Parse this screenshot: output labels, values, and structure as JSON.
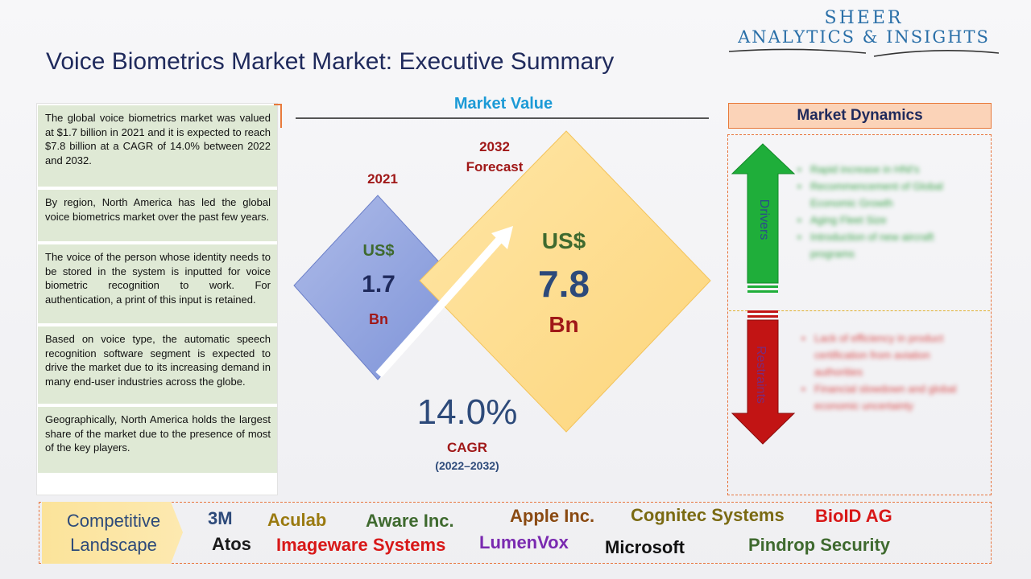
{
  "logo": {
    "line1": "SHEER",
    "line2": "ANALYTICS & INSIGHTS"
  },
  "title": "Voice Biometrics Market Market: Executive Summary",
  "summary": [
    "The global voice biometrics market was valued at $1.7 billion in 2021 and it is expected to reach $7.8 billion at a CAGR of 14.0% between 2022 and 2032.",
    "By region, North America has led the global voice biometrics market over the past few years.",
    "The voice of the person whose identity needs to be stored in the system is inputted for voice biometric recognition to work. For authentication, a print of this input is retained.",
    "Based on voice type, the automatic speech recognition software segment is expected to drive the market due to its increasing demand in many end-user industries across the globe.",
    "Geographically, North America holds the largest share of the market due to the presence of most of the key players."
  ],
  "market_value": {
    "heading": "Market Value",
    "v2021": {
      "year": "2021",
      "currency": "US$",
      "value": "1.7",
      "unit": "Bn"
    },
    "v2032": {
      "year_line1": "2032",
      "year_line2": "Forecast",
      "currency": "US$",
      "value": "7.8",
      "unit": "Bn"
    },
    "cagr": {
      "value": "14.0%",
      "label": "CAGR",
      "period": "(2022–2032)"
    }
  },
  "market_dynamics": {
    "heading": "Market Dynamics",
    "drivers_label": "Drivers",
    "restraints_label": "Restraints",
    "drivers": [
      "Rapid increase in HNI's",
      "Recommencement of Global Economic Growth",
      "Aging Fleet Size",
      "Introduction of new aircraft programs"
    ],
    "restraints": [
      "Lack of efficiency in product certification from aviation authorities",
      "Financial slowdown and global economic uncertainty"
    ],
    "colors": {
      "drivers": "#1fae3a",
      "restraints": "#c21414"
    }
  },
  "competitive": {
    "label_line1": "Competitive",
    "label_line2": "Landscape",
    "companies": [
      {
        "name": "3M",
        "color": "#2d4a7a"
      },
      {
        "name": "Aculab",
        "color": "#9a7a10"
      },
      {
        "name": "Aware Inc.",
        "color": "#3f6a2f"
      },
      {
        "name": "Apple Inc.",
        "color": "#8a4a12"
      },
      {
        "name": "Cognitec Systems",
        "color": "#7a6a12"
      },
      {
        "name": "BioID AG",
        "color": "#d81818"
      },
      {
        "name": "Atos",
        "color": "#1a1a1a"
      },
      {
        "name": "Imageware Systems",
        "color": "#d81818"
      },
      {
        "name": "LumenVox",
        "color": "#7a2ab0"
      },
      {
        "name": "Microsoft",
        "color": "#111111"
      },
      {
        "name": "Pindrop Security",
        "color": "#3f6a2f"
      }
    ]
  }
}
